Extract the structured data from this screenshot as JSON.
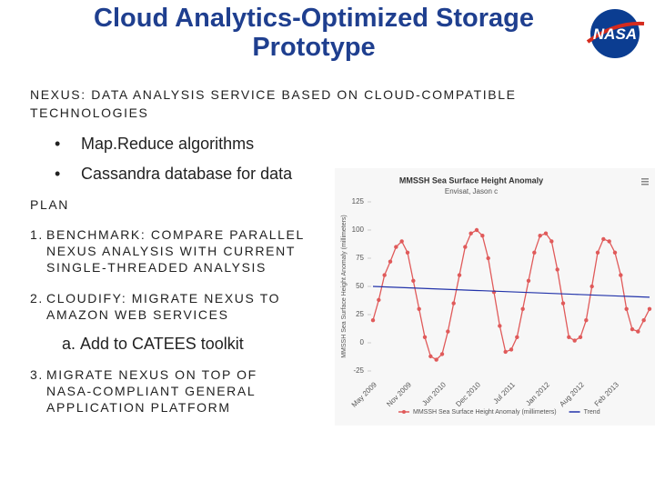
{
  "header": {
    "title": "Cloud Analytics-Optimized Storage Prototype",
    "logo": "NASA"
  },
  "intro": "NEXUS: DATA ANALYSIS SERVICE BASED ON CLOUD-COMPATIBLE TECHNOLOGIES",
  "bullets": [
    "Map.Reduce algorithms",
    "Cassandra database for data"
  ],
  "plan": {
    "heading": "PLAN",
    "items": [
      {
        "number": "1.",
        "lines": [
          "BENCHMARK:  COMPARE PARALLEL",
          "NEXUS ANALYSIS WITH CURRENT",
          "SINGLE-THREADED ANALYSIS"
        ]
      },
      {
        "number": "2.",
        "lines": [
          "CLOUDIFY:  MIGRATE NEXUS TO",
          "AMAZON WEB SERVICES"
        ]
      },
      {
        "number": "3.",
        "lines": [
          "MIGRATE NEXUS ON TOP OF",
          "NASA-COMPLIANT GENERAL",
          "APPLICATION PLATFORM"
        ]
      }
    ],
    "subitem": {
      "number": "a.",
      "text": "Add to CATEES toolkit"
    }
  },
  "chart_data": {
    "type": "line",
    "title": "MMSSH Sea Surface Height Anomaly",
    "subtitle": "Envisat, Jason c",
    "y_label": "MMSSH Sea Surface Height Anomaly (millimeters)",
    "categories": [
      "May 2009",
      null,
      null,
      null,
      null,
      null,
      "Nov 2009",
      null,
      null,
      null,
      null,
      null,
      "Jun 2010",
      null,
      null,
      null,
      null,
      null,
      "Dec 2010",
      null,
      null,
      null,
      null,
      null,
      "Jul 2011",
      null,
      null,
      null,
      null,
      null,
      "Jan 2012",
      null,
      null,
      null,
      null,
      null,
      "Aug 2012",
      null,
      null,
      null,
      null,
      null,
      "Feb 2013",
      null,
      null,
      null,
      null,
      null,
      null
    ],
    "series": [
      {
        "name": "MMSSH Sea Surface Height Anomaly (millimeters)",
        "color": "#e05a5a",
        "values": [
          20,
          38,
          60,
          72,
          85,
          90,
          80,
          55,
          30,
          5,
          -12,
          -15,
          -10,
          10,
          35,
          60,
          85,
          97,
          100,
          95,
          75,
          45,
          15,
          -8,
          -6,
          5,
          30,
          55,
          80,
          95,
          97,
          90,
          65,
          35,
          5,
          2,
          5,
          20,
          50,
          80,
          92,
          90,
          80,
          60,
          30,
          12,
          10,
          20,
          30
        ]
      },
      {
        "name": "Trend",
        "color": "#2233aa",
        "values": [
          50.0,
          49.8,
          49.6,
          49.4,
          49.2,
          49.0,
          48.8,
          48.6,
          48.4,
          48.2,
          48.0,
          47.8,
          47.6,
          47.4,
          47.2,
          47.0,
          46.8,
          46.6,
          46.4,
          46.2,
          46.0,
          45.8,
          45.6,
          45.4,
          45.2,
          45.0,
          44.8,
          44.6,
          44.4,
          44.2,
          44.0,
          43.8,
          43.6,
          43.4,
          43.2,
          43.0,
          42.8,
          42.6,
          42.4,
          42.2,
          42.0,
          41.8,
          41.6,
          41.4,
          41.2,
          41.0,
          40.8,
          40.6,
          40.4
        ]
      }
    ],
    "ylim": [
      -25,
      125
    ],
    "yticks": [
      -25,
      0,
      25,
      50,
      75,
      100,
      125
    ],
    "grid": false
  }
}
